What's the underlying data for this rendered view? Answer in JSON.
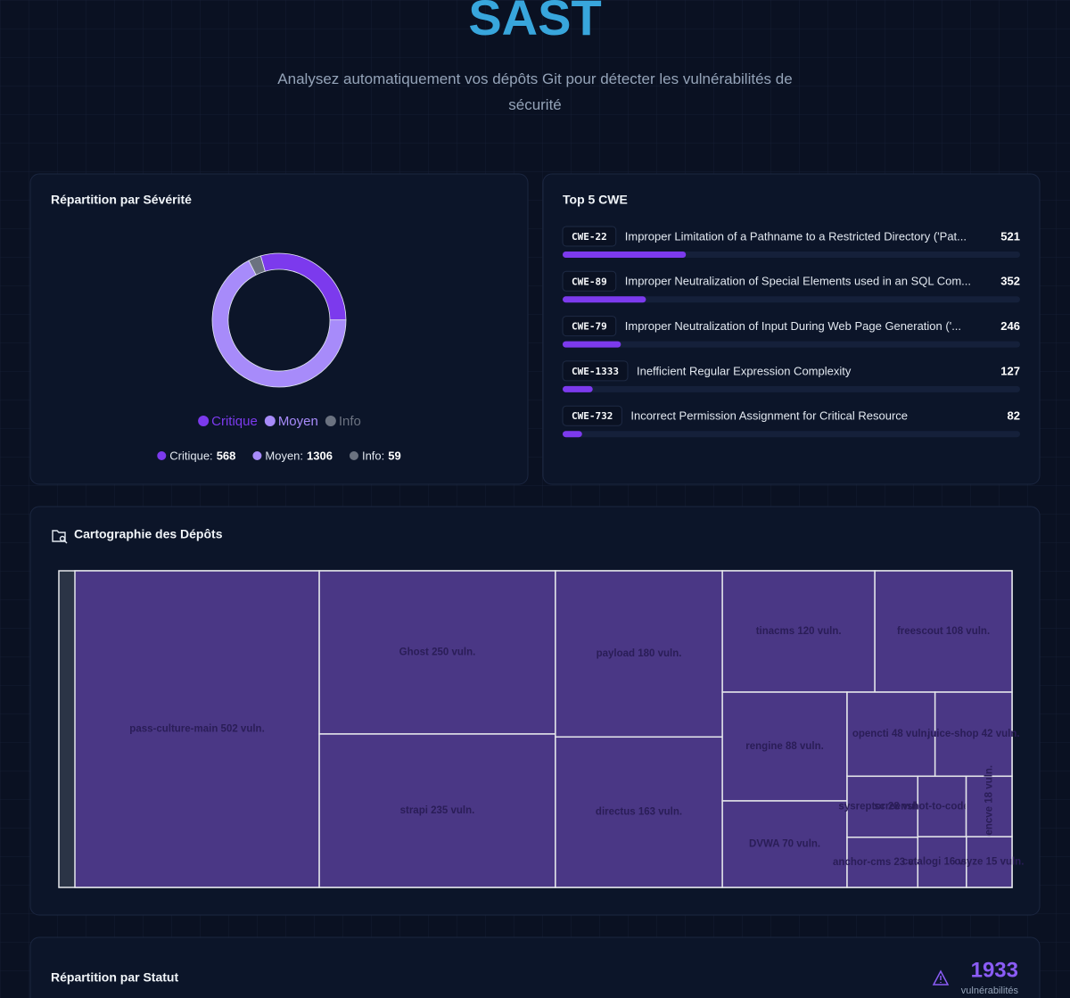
{
  "header": {
    "title": "SAST",
    "subtitle": "Analysez automatiquement vos dépôts Git pour détecter les vulnérabilités de sécurité"
  },
  "chart_data": [
    {
      "type": "pie",
      "title": "Répartition par Sévérité",
      "categories": [
        "Critique",
        "Moyen",
        "Info"
      ],
      "values": [
        568,
        1306,
        59
      ],
      "colors": [
        "#7c3aed",
        "#a78bfa",
        "#6b7280"
      ],
      "summary_labels": [
        "Critique:",
        "Moyen:",
        "Info:"
      ]
    },
    {
      "type": "bar",
      "title": "Top 5 CWE",
      "categories": [
        "CWE-22",
        "CWE-89",
        "CWE-79",
        "CWE-1333",
        "CWE-732"
      ],
      "descriptions": [
        "Improper Limitation of a Pathname to a Restricted Directory ('Pat...",
        "Improper Neutralization of Special Elements used in an SQL Com...",
        "Improper Neutralization of Input During Web Page Generation ('...",
        "Inefficient Regular Expression Complexity",
        "Incorrect Permission Assignment for Critical Resource"
      ],
      "values": [
        521,
        352,
        246,
        127,
        82
      ],
      "xlim": [
        0,
        1933
      ],
      "color": "#7c3aed"
    },
    {
      "type": "treemap",
      "title": "Cartographie des Dépôts",
      "categories": [
        "pass-culture-main",
        "Ghost",
        "strapi",
        "payload",
        "directus",
        "tinacms",
        "freescout",
        "rengine",
        "DVWA",
        "opencti",
        "juice-shop",
        "sysreptor",
        "anchor-cms",
        "screenshot-to-code",
        "opencve",
        "catalogi",
        "osyze"
      ],
      "values": [
        502,
        250,
        235,
        180,
        163,
        120,
        108,
        88,
        70,
        48,
        42,
        28,
        23,
        19,
        18,
        16,
        15
      ],
      "value_labels": [
        "pass-culture-main 502 vuln.",
        "Ghost 250 vuln.",
        "strapi 235 vuln.",
        "payload 180 vuln.",
        "directus 163 vuln.",
        "tinacms 120 vuln.",
        "freescout 108 vuln.",
        "rengine 88 vuln.",
        "DVWA 70 vuln.",
        "opencti 48 vuln.",
        "juice-shop 42 vuln.",
        "sysreptor 28 vuln.",
        "anchor-cms 23 vuln.",
        "screenshot-to-code 19 vuln.",
        "opencve 18 vuln.",
        "catalogi 16 vuln.",
        "osyze 15 vuln."
      ],
      "color": "#4a3785"
    }
  ],
  "status": {
    "title": "Répartition par Statut",
    "total": 1933,
    "total_label": "vulnérabilités"
  }
}
